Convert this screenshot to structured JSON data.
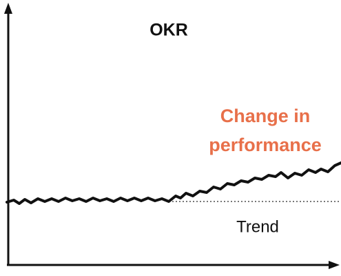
{
  "title": "OKR",
  "annotation": {
    "lines": [
      "Change in",
      "performance"
    ]
  },
  "trend_label": "Trend"
}
